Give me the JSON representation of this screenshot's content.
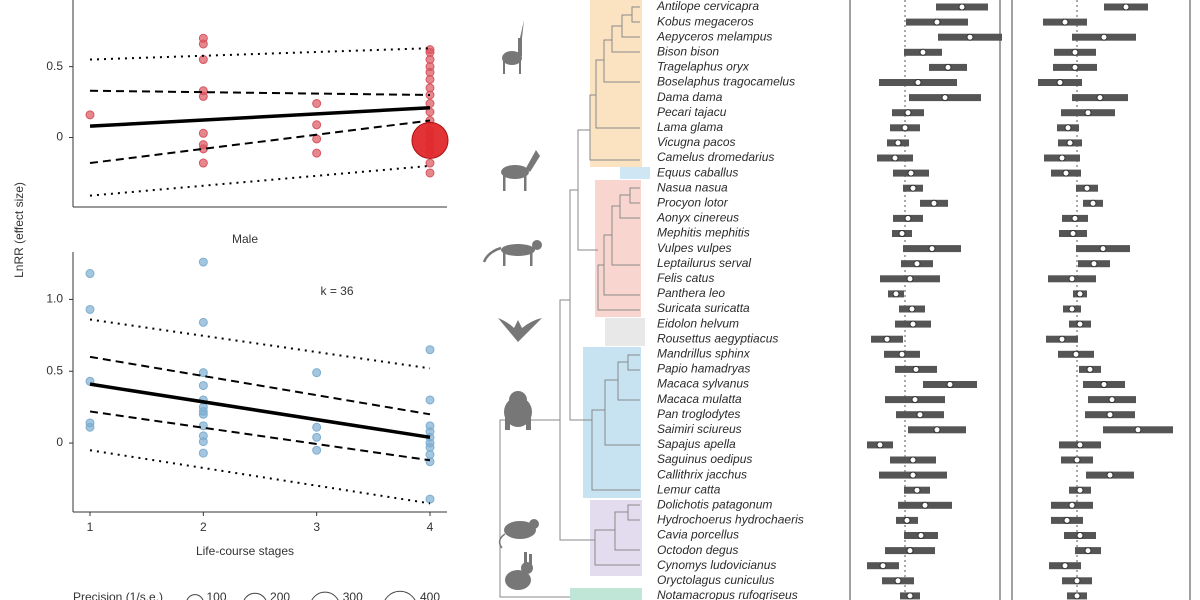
{
  "chart_data": [
    {
      "type": "scatter",
      "y_label": "LnRR (effect size)",
      "xlim": [
        0.85,
        4.15
      ],
      "ylim": [
        -0.49,
        0.97
      ],
      "yticks": [
        0,
        0.5
      ],
      "color": "#d9545e",
      "points": {
        "x": [
          1,
          2,
          2,
          2,
          2,
          2,
          2,
          2,
          2,
          2,
          3,
          3,
          3,
          3,
          4,
          4,
          4,
          4,
          4,
          4,
          4,
          4,
          4,
          4,
          4,
          4,
          4,
          4,
          4,
          4,
          4,
          4
        ],
        "values": [
          0.16,
          0.7,
          0.66,
          0.55,
          0.33,
          0.29,
          0.03,
          -0.05,
          -0.08,
          -0.18,
          0.24,
          0.09,
          -0.01,
          -0.11,
          0.62,
          0.6,
          0.55,
          0.5,
          0.46,
          0.41,
          0.35,
          0.3,
          0.24,
          0.18,
          0.12,
          0.05,
          0,
          -0.05,
          -0.1,
          -0.18,
          -0.25,
          -0.02
        ],
        "sizes": [
          22,
          22,
          22,
          22,
          22,
          22,
          22,
          22,
          22,
          22,
          22,
          22,
          22,
          22,
          22,
          22,
          22,
          22,
          22,
          22,
          22,
          22,
          22,
          22,
          22,
          22,
          22,
          22,
          22,
          22,
          22,
          450
        ]
      },
      "lines": [
        {
          "style": "solid",
          "x": [
            1,
            4
          ],
          "values": [
            0.08,
            0.21
          ]
        },
        {
          "style": "dashed",
          "x": [
            1,
            4
          ],
          "values": [
            0.33,
            0.3
          ]
        },
        {
          "style": "dashed",
          "x": [
            1,
            4
          ],
          "values": [
            -0.18,
            0.12
          ]
        },
        {
          "style": "dotted",
          "x": [
            1,
            4
          ],
          "values": [
            0.55,
            0.63
          ]
        },
        {
          "style": "dotted",
          "x": [
            1,
            4
          ],
          "values": [
            -0.41,
            -0.2
          ]
        }
      ]
    },
    {
      "type": "scatter",
      "title": "Male",
      "annotation": "k = 36",
      "x_label": "Life-course stages",
      "xlim": [
        0.85,
        4.15
      ],
      "xticks": [
        1,
        2,
        3,
        4
      ],
      "ylim": [
        -0.48,
        1.33
      ],
      "yticks": [
        0,
        0.5,
        {
          "value": 1,
          "label": "1.0"
        }
      ],
      "color": "#7eaed0",
      "points": {
        "x": [
          1,
          1,
          1,
          1,
          1,
          2,
          2,
          2,
          2,
          2,
          2,
          2,
          2,
          2,
          2,
          2,
          2,
          3,
          3,
          3,
          3,
          4,
          4,
          4,
          4,
          4,
          4,
          4,
          4,
          4,
          4
        ],
        "values": [
          1.18,
          0.93,
          0.43,
          0.14,
          0.11,
          1.26,
          0.84,
          0.49,
          0.4,
          0.3,
          0.25,
          0.22,
          0.2,
          0.12,
          0.05,
          0.01,
          -0.07,
          0.49,
          0.11,
          0.04,
          -0.05,
          0.65,
          0.3,
          0.12,
          0.08,
          0.04,
          0,
          -0.03,
          -0.08,
          -0.13,
          -0.39
        ],
        "sizes": [
          22,
          22,
          22,
          22,
          22,
          22,
          22,
          22,
          22,
          22,
          22,
          22,
          22,
          22,
          22,
          22,
          22,
          22,
          22,
          22,
          22,
          22,
          22,
          22,
          22,
          22,
          22,
          22,
          22,
          22,
          22
        ]
      },
      "lines": [
        {
          "style": "solid",
          "x": [
            1,
            4
          ],
          "values": [
            0.41,
            0.04
          ]
        },
        {
          "style": "dashed",
          "x": [
            1,
            4
          ],
          "values": [
            0.6,
            0.2
          ]
        },
        {
          "style": "dashed",
          "x": [
            1,
            4
          ],
          "values": [
            0.22,
            -0.12
          ]
        },
        {
          "style": "dotted",
          "x": [
            1,
            4
          ],
          "values": [
            0.86,
            0.52
          ]
        },
        {
          "style": "dotted",
          "x": [
            1,
            4
          ],
          "values": [
            -0.05,
            -0.42
          ]
        }
      ]
    },
    {
      "type": "forest",
      "categories": [
        "Antilope cervicapra",
        "Kobus megaceros",
        "Aepyceros melampus",
        "Bison bison",
        "Tragelaphus oryx",
        "Boselaphus tragocamelus",
        "Dama dama",
        "Pecari tajacu",
        "Lama glama",
        "Vicugna pacos",
        "Camelus dromedarius",
        "Equus caballus",
        "Nasua nasua",
        "Procyon lotor",
        "Aonyx cinereus",
        "Mephitis mephitis",
        "Vulpes vulpes",
        "Leptailurus serval",
        "Felis catus",
        "Panthera leo",
        "Suricata suricatta",
        "Eidolon helvum",
        "Rousettus aegyptiacus",
        "Mandrillus sphinx",
        "Papio hamadryas",
        "Macaca sylvanus",
        "Macaca mulatta",
        "Pan troglodytes",
        "Saimiri sciureus",
        "Sapajus apella",
        "Saguinus oedipus",
        "Callithrix jacchus",
        "Lemur catta",
        "Dolichotis patagonum",
        "Hydrochoerus hydrochaeris",
        "Cavia porcellus",
        "Octodon degus",
        "Cynomys ludovicianus",
        "Oryctolagus cuniculus",
        "Notamacropus rufogriseus"
      ],
      "panels": [
        {
          "xlim": [
            -0.55,
            0.95
          ],
          "reference": 0,
          "values": [
            0.57,
            0.32,
            0.65,
            0.18,
            0.43,
            0.13,
            0.4,
            0.03,
            0,
            -0.07,
            -0.1,
            0.06,
            0.08,
            0.29,
            0.03,
            -0.03,
            0.27,
            0.12,
            0.05,
            -0.09,
            0.07,
            0.08,
            -0.18,
            -0.03,
            0.11,
            0.45,
            0.1,
            0.15,
            0.32,
            -0.25,
            0.08,
            0.08,
            0.12,
            0.2,
            0.02,
            0.16,
            0.05,
            -0.22,
            -0.07,
            0.05
          ],
          "errors": [
            0.26,
            0.31,
            0.32,
            0.19,
            0.19,
            0.39,
            0.36,
            0.16,
            0.15,
            0.11,
            0.18,
            0.18,
            0.1,
            0.14,
            0.15,
            0.1,
            0.29,
            0.16,
            0.3,
            0.08,
            0.13,
            0.18,
            0.16,
            0.18,
            0.21,
            0.27,
            0.3,
            0.24,
            0.29,
            0.13,
            0.23,
            0.34,
            0.13,
            0.27,
            0.11,
            0.17,
            0.25,
            0.16,
            0.16,
            0.1
          ]
        },
        {
          "xlim": [
            -0.65,
            1.13
          ],
          "reference": 0,
          "values": [
            0.49,
            -0.12,
            0.27,
            -0.02,
            -0.02,
            -0.17,
            0.23,
            0.11,
            -0.09,
            -0.07,
            -0.15,
            -0.11,
            0.1,
            0.16,
            -0.02,
            -0.04,
            0.26,
            0.17,
            -0.05,
            0.03,
            -0.05,
            0.03,
            -0.15,
            -0.01,
            0.13,
            0.27,
            0.35,
            0.33,
            0.61,
            0.03,
            0,
            0.33,
            0.03,
            -0.05,
            -0.1,
            0.03,
            0.11,
            -0.12,
            0,
            0
          ],
          "errors": [
            0.22,
            0.22,
            0.32,
            0.21,
            0.22,
            0.22,
            0.28,
            0.27,
            0.11,
            0.12,
            0.18,
            0.15,
            0.11,
            0.1,
            0.13,
            0.14,
            0.27,
            0.16,
            0.24,
            0.07,
            0.09,
            0.11,
            0.16,
            0.18,
            0.11,
            0.21,
            0.24,
            0.25,
            0.35,
            0.21,
            0.16,
            0.24,
            0.11,
            0.21,
            0.16,
            0.16,
            0.13,
            0.16,
            0.15,
            0.1
          ]
        }
      ]
    }
  ],
  "legend": {
    "title": "Precision (1/s.e.)",
    "values": [
      100,
      200,
      300,
      400
    ]
  }
}
